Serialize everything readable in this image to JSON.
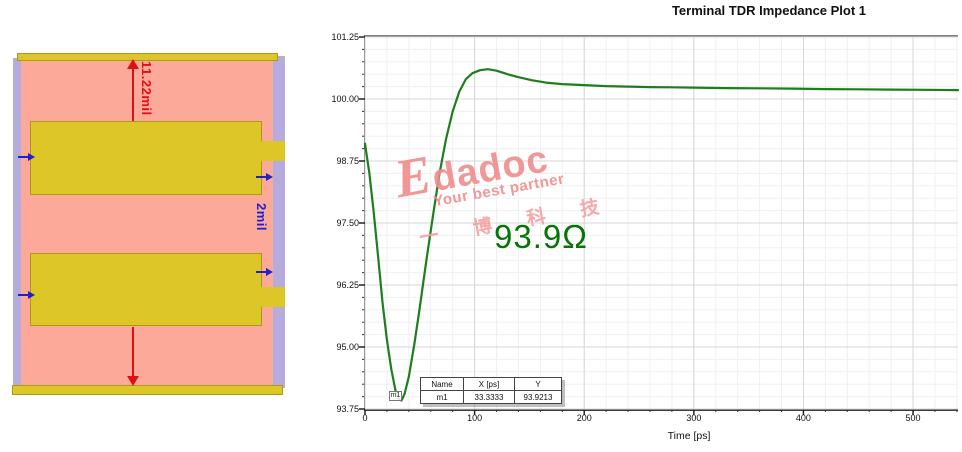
{
  "stackup": {
    "height_label": "11.22mil",
    "gap_label": "2mil",
    "colors": {
      "dielectric": "#fda99a",
      "copper": "#ddc628",
      "copper_border": "#ac9a15",
      "soldermask": "#b5acde",
      "dimension_arrow": "#dd1111",
      "port_arrow": "#2121cc"
    }
  },
  "chart": {
    "title": "Terminal TDR Impedance Plot 1",
    "xlabel": "Time [ps]",
    "annotation": "93.9Ω",
    "watermark": {
      "brand": "Edadoc",
      "tagline": "Your best partner",
      "cn": "一 博 科 技"
    },
    "marker_table": {
      "headers": [
        "Name",
        "X [ps]",
        "Y"
      ],
      "rows": [
        [
          "m1",
          "33.3333",
          "93.9213"
        ]
      ]
    }
  },
  "chart_data": {
    "type": "line",
    "title": "Terminal TDR Impedance Plot 1",
    "xlabel": "Time [ps]",
    "ylabel": "",
    "xlim": [
      0,
      541
    ],
    "ylim": [
      93.75,
      101.25
    ],
    "xticks": [
      0,
      100,
      200,
      300,
      400,
      500
    ],
    "xtick_labels": [
      "0",
      "100",
      "200",
      "300",
      "400",
      "500"
    ],
    "yticks": [
      101.25,
      100.0,
      98.75,
      97.5,
      96.25,
      95.0,
      93.75
    ],
    "ytick_labels": [
      "101.25",
      "100.00",
      "98.75",
      "97.50",
      "96.25",
      "95.00",
      "93.75"
    ],
    "x_minor_step": 20,
    "y_minor_step": 0.25,
    "grid": true,
    "legend_position": "none",
    "line_color": "#1e7e1e",
    "series": [
      {
        "name": "Terminal TDR Impedance",
        "x": [
          0,
          4,
          8,
          12,
          16,
          20,
          24,
          28,
          31,
          33.33,
          36,
          40,
          45,
          50,
          56,
          62,
          68,
          74,
          80,
          86,
          92,
          98,
          105,
          112,
          120,
          130,
          140,
          152,
          165,
          180,
          200,
          220,
          240,
          260,
          280,
          300,
          330,
          360,
          390,
          420,
          450,
          480,
          510,
          541
        ],
        "y": [
          99.1,
          98.5,
          97.7,
          96.8,
          95.9,
          95.15,
          94.55,
          94.1,
          93.95,
          93.92,
          94.05,
          94.4,
          95.05,
          95.8,
          96.75,
          97.65,
          98.5,
          99.2,
          99.75,
          100.15,
          100.4,
          100.52,
          100.58,
          100.6,
          100.57,
          100.5,
          100.44,
          100.38,
          100.33,
          100.3,
          100.28,
          100.26,
          100.25,
          100.24,
          100.235,
          100.23,
          100.22,
          100.215,
          100.21,
          100.2,
          100.195,
          100.19,
          100.185,
          100.18
        ]
      }
    ],
    "markers": [
      {
        "name": "m1",
        "x": 33.3333,
        "y": 93.9213
      }
    ]
  }
}
